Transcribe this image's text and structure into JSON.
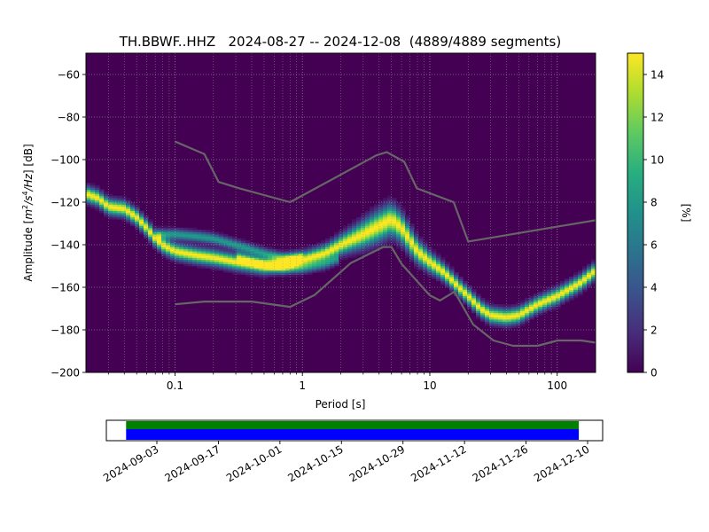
{
  "chart_data": {
    "type": "heatmap",
    "title": "TH.BBWF..HHZ   2024-08-27 -- 2024-12-08  (4889/4889 segments)",
    "xlabel": "Period [s]",
    "ylabel": "Amplitude [m2/s4/Hz] [dB]",
    "x_scale": "log",
    "xlim": [
      0.02,
      200
    ],
    "ylim": [
      -200,
      -50
    ],
    "x_ticks": [
      0.1,
      1,
      10,
      100
    ],
    "x_tick_labels": [
      "0.1",
      "1",
      "10",
      "100"
    ],
    "y_ticks": [
      -200,
      -180,
      -160,
      -140,
      -120,
      -100,
      -80,
      -60
    ],
    "y_tick_labels": [
      "−200",
      "−180",
      "−160",
      "−140",
      "−120",
      "−100",
      "−80",
      "−60"
    ],
    "grid": true,
    "colormap": "viridis",
    "colorbar": {
      "label": "[%]",
      "range": [
        0,
        15
      ],
      "ticks": [
        0,
        2,
        4,
        6,
        8,
        10,
        12,
        14
      ],
      "tick_labels": [
        "0",
        "2",
        "4",
        "6",
        "8",
        "10",
        "12",
        "14"
      ]
    },
    "mode_lines": [
      {
        "points": [
          [
            0.02,
            -116
          ],
          [
            0.025,
            -118
          ],
          [
            0.03,
            -122
          ],
          [
            0.04,
            -123
          ],
          [
            0.05,
            -127
          ],
          [
            0.06,
            -132
          ],
          [
            0.07,
            -137
          ],
          [
            0.08,
            -140
          ],
          [
            0.1,
            -143
          ],
          [
            0.15,
            -145
          ],
          [
            0.2,
            -146
          ],
          [
            0.3,
            -148
          ],
          [
            0.5,
            -150
          ],
          [
            0.7,
            -149
          ],
          [
            1,
            -147
          ],
          [
            1.5,
            -144
          ],
          [
            2,
            -140
          ],
          [
            3,
            -135
          ],
          [
            4,
            -131
          ],
          [
            5,
            -128
          ],
          [
            6,
            -132
          ],
          [
            7,
            -138
          ],
          [
            8,
            -143
          ],
          [
            10,
            -148
          ],
          [
            13,
            -153
          ],
          [
            17,
            -160
          ],
          [
            20,
            -164
          ],
          [
            25,
            -170
          ],
          [
            30,
            -173
          ],
          [
            40,
            -174
          ],
          [
            50,
            -173
          ],
          [
            70,
            -168
          ],
          [
            100,
            -164
          ],
          [
            150,
            -158
          ],
          [
            200,
            -152
          ]
        ],
        "weight": 1.0
      },
      {
        "points": [
          [
            0.07,
            -135
          ],
          [
            0.1,
            -135
          ],
          [
            0.15,
            -136
          ],
          [
            0.2,
            -137
          ],
          [
            0.3,
            -140
          ],
          [
            0.5,
            -144
          ],
          [
            0.7,
            -146
          ],
          [
            1,
            -146
          ]
        ],
        "weight": 0.55
      },
      {
        "points": [
          [
            0.3,
            -145
          ],
          [
            0.5,
            -149
          ],
          [
            0.7,
            -151
          ],
          [
            1,
            -151
          ],
          [
            1.5,
            -149
          ],
          [
            2,
            -146
          ]
        ],
        "weight": 0.45
      }
    ],
    "noise_models": {
      "color": "#666666",
      "high": [
        [
          0.1,
          -91.5
        ],
        [
          0.17,
          -97.4
        ],
        [
          0.22,
          -110.5
        ],
        [
          0.32,
          -113.5
        ],
        [
          0.8,
          -120
        ],
        [
          3.8,
          -98
        ],
        [
          4.6,
          -96.5
        ],
        [
          6.3,
          -101
        ],
        [
          7.9,
          -113.5
        ],
        [
          15.4,
          -120
        ],
        [
          20,
          -138.5
        ],
        [
          354.8,
          -126
        ]
      ],
      "low": [
        [
          0.1,
          -168
        ],
        [
          0.17,
          -166.7
        ],
        [
          0.4,
          -166.7
        ],
        [
          0.8,
          -169.2
        ],
        [
          1.24,
          -163.7
        ],
        [
          2.4,
          -148.6
        ],
        [
          4.3,
          -141.1
        ],
        [
          5,
          -141.1
        ],
        [
          6,
          -149
        ],
        [
          10,
          -163.8
        ],
        [
          12,
          -166.2
        ],
        [
          15.6,
          -162.1
        ],
        [
          21.9,
          -177.5
        ],
        [
          31.6,
          -185
        ],
        [
          45,
          -187.5
        ],
        [
          70,
          -187.5
        ],
        [
          101,
          -185
        ],
        [
          154,
          -185
        ],
        [
          200,
          -186
        ]
      ]
    },
    "coverage": {
      "x_ticks": [
        "2024-09-03",
        "2024-09-17",
        "2024-10-01",
        "2024-10-15",
        "2024-10-29",
        "2024-11-12",
        "2024-11-26",
        "2024-12-10"
      ],
      "start": "2024-08-27",
      "end": "2024-12-08",
      "bars": [
        {
          "color": "#008000",
          "start": "2024-08-27",
          "end": "2024-12-08"
        },
        {
          "color": "#0000ff",
          "start": "2024-08-27",
          "end": "2024-12-08"
        }
      ]
    }
  }
}
